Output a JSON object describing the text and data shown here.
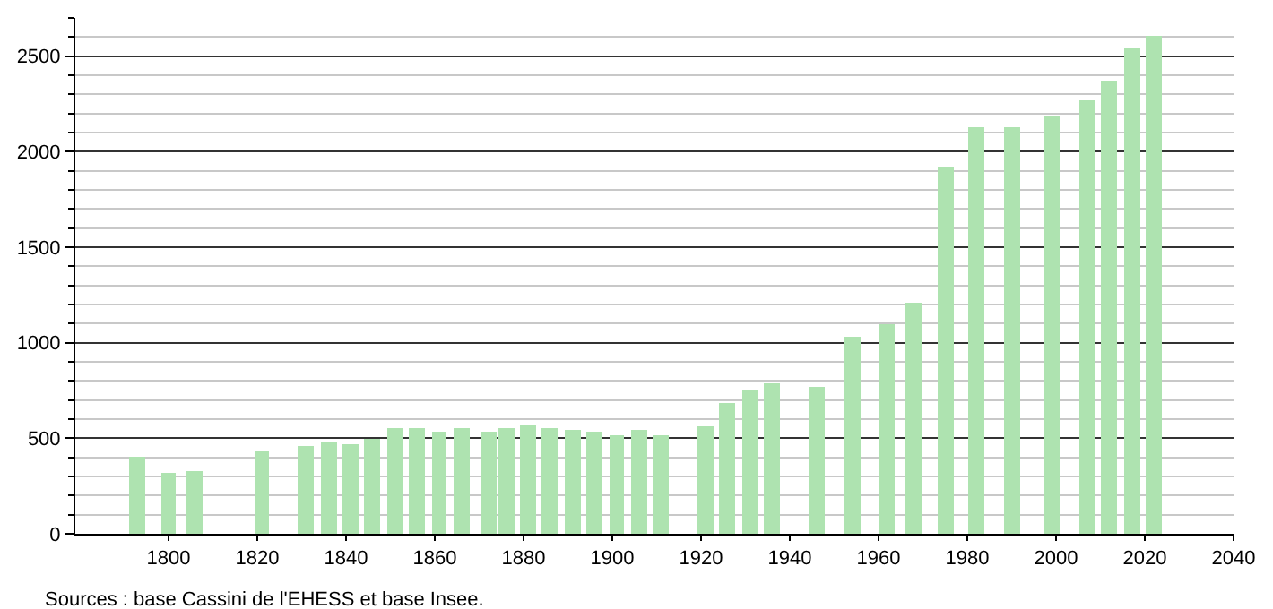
{
  "chart_data": {
    "type": "bar",
    "x": [
      1793,
      1800,
      1806,
      1821,
      1831,
      1836,
      1841,
      1846,
      1851,
      1856,
      1861,
      1866,
      1872,
      1876,
      1881,
      1886,
      1891,
      1896,
      1901,
      1906,
      1911,
      1921,
      1926,
      1931,
      1936,
      1946,
      1954,
      1962,
      1968,
      1975,
      1982,
      1990,
      1999,
      2007,
      2012,
      2017,
      2022
    ],
    "values": [
      400,
      320,
      330,
      430,
      460,
      480,
      470,
      500,
      550,
      550,
      530,
      550,
      530,
      550,
      570,
      550,
      540,
      530,
      520,
      540,
      520,
      560,
      680,
      750,
      790,
      770,
      1030,
      1100,
      1210,
      1920,
      2130,
      2130,
      2180,
      2270,
      2370,
      2540,
      2610
    ],
    "color": "#aee3b0",
    "xlim": [
      1779,
      2040
    ],
    "xticks": [
      1800,
      1820,
      1840,
      1860,
      1880,
      1900,
      1920,
      1940,
      1960,
      1980,
      2000,
      2020,
      2040
    ],
    "ylim": [
      0,
      2700
    ],
    "yticks": [
      0,
      {
        "value": 100,
        "label": null
      },
      {
        "value": 200,
        "label": null
      },
      {
        "value": 300,
        "label": null
      },
      {
        "value": 400,
        "label": null
      },
      500,
      {
        "value": 600,
        "label": null
      },
      {
        "value": 700,
        "label": null
      },
      {
        "value": 800,
        "label": null
      },
      {
        "value": 900,
        "label": null
      },
      1000,
      {
        "value": 1100,
        "label": null
      },
      {
        "value": 1200,
        "label": null
      },
      {
        "value": 1300,
        "label": null
      },
      {
        "value": 1400,
        "label": null
      },
      1500,
      {
        "value": 1600,
        "label": null
      },
      {
        "value": 1700,
        "label": null
      },
      {
        "value": 1800,
        "label": null
      },
      {
        "value": 1900,
        "label": null
      },
      2000,
      {
        "value": 2100,
        "label": null
      },
      {
        "value": 2200,
        "label": null
      },
      {
        "value": 2300,
        "label": null
      },
      {
        "value": 2400,
        "label": null
      },
      2500,
      {
        "value": 2600,
        "label": null
      },
      {
        "value": 2700,
        "label": null
      }
    ],
    "grid": "y",
    "annotations": [
      "Sources : base Cassini de l'EHESS et base Insee."
    ]
  }
}
